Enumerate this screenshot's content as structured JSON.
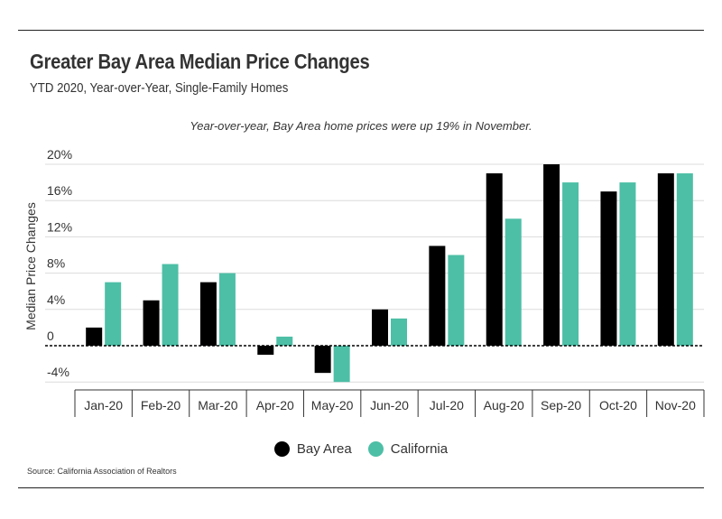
{
  "header": {
    "title": "Greater Bay Area Median Price Changes",
    "subtitle": "YTD 2020, Year-over-Year, Single-Family Homes"
  },
  "footer": {
    "source": "Source:  California Association of Realtors"
  },
  "colors": {
    "bay_area": "#000000",
    "california": "#4dbfa6",
    "grid": "#dcdcdc",
    "axis": "#333333"
  },
  "chart_data": {
    "type": "bar",
    "annotation": "Year-over-year, Bay Area home prices were up 19% in November.",
    "ylabel": "Median Price Changes",
    "xlabel": "",
    "ylim": [
      -4,
      20
    ],
    "yticks": [
      {
        "value": 20,
        "label": "20%"
      },
      {
        "value": 16,
        "label": "16%"
      },
      {
        "value": 12,
        "label": "12%"
      },
      {
        "value": 8,
        "label": "8%"
      },
      {
        "value": 4,
        "label": "4%"
      },
      {
        "value": 0,
        "label": "0"
      },
      {
        "value": -4,
        "label": "-4%"
      }
    ],
    "categories": [
      "Jan-20",
      "Feb-20",
      "Mar-20",
      "Apr-20",
      "May-20",
      "Jun-20",
      "Jul-20",
      "Aug-20",
      "Sep-20",
      "Oct-20",
      "Nov-20"
    ],
    "series": [
      {
        "name": "Bay Area",
        "key": "bay_area",
        "values": [
          2,
          5,
          7,
          -1,
          -3,
          4,
          11,
          19,
          20,
          17,
          19
        ]
      },
      {
        "name": "California",
        "key": "california",
        "values": [
          7,
          9,
          8,
          1,
          -4,
          3,
          10,
          14,
          18,
          18,
          19
        ]
      }
    ],
    "legend": "bottom-center",
    "grid": true
  }
}
